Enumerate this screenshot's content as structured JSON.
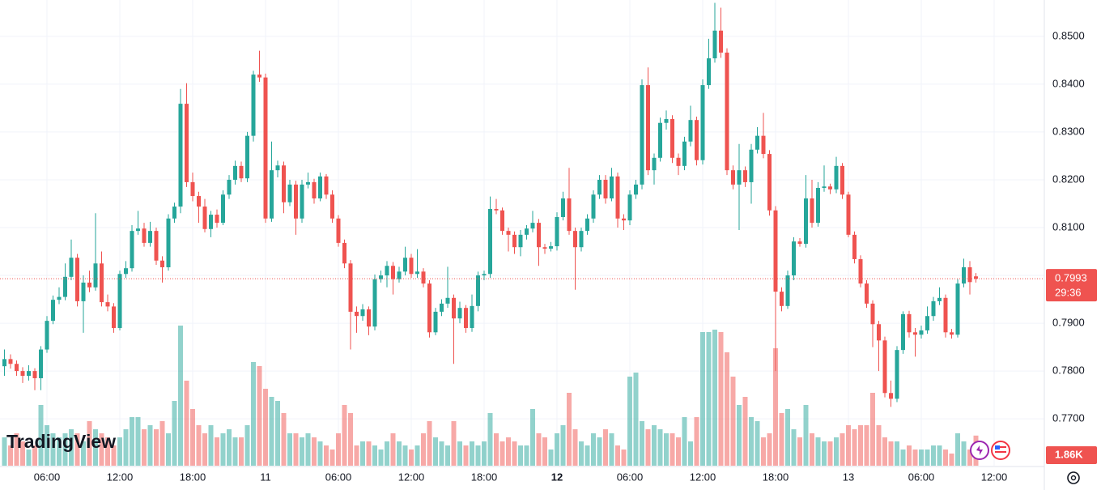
{
  "chart_data": {
    "type": "candlestick",
    "ylim": [
      0.7602,
      0.8576
    ],
    "yticks": [
      {
        "value": 0.77,
        "label": "0.7700"
      },
      {
        "value": 0.78,
        "label": "0.7800"
      },
      {
        "value": 0.79,
        "label": "0.7900"
      },
      {
        "value": 0.8,
        "label": "0.8000"
      },
      {
        "value": 0.81,
        "label": "0.8100"
      },
      {
        "value": 0.82,
        "label": "0.8200"
      },
      {
        "value": 0.83,
        "label": "0.8300"
      },
      {
        "value": 0.84,
        "label": "0.8400"
      },
      {
        "value": 0.85,
        "label": "0.8500"
      }
    ],
    "up_color": "#26a69a",
    "down_color": "#ef5350",
    "grid": true,
    "categories": [
      null,
      null,
      null,
      null,
      null,
      null,
      null,
      "06:00",
      null,
      null,
      null,
      null,
      null,
      null,
      null,
      null,
      null,
      null,
      null,
      "12:00",
      null,
      null,
      null,
      null,
      null,
      null,
      null,
      null,
      null,
      null,
      null,
      "18:00",
      null,
      null,
      null,
      null,
      null,
      null,
      null,
      null,
      null,
      null,
      null,
      "11",
      null,
      null,
      null,
      null,
      null,
      null,
      null,
      null,
      null,
      null,
      null,
      "06:00",
      null,
      null,
      null,
      null,
      null,
      null,
      null,
      null,
      null,
      null,
      null,
      "12:00",
      null,
      null,
      null,
      null,
      null,
      null,
      null,
      null,
      null,
      null,
      null,
      "18:00",
      null,
      null,
      null,
      null,
      null,
      null,
      null,
      null,
      null,
      null,
      null,
      "12",
      null,
      null,
      null,
      null,
      null,
      null,
      null,
      null,
      null,
      null,
      null,
      "06:00",
      null,
      null,
      null,
      null,
      null,
      null,
      null,
      null,
      null,
      null,
      null,
      "12:00",
      null,
      null,
      null,
      null,
      null,
      null,
      null,
      null,
      null,
      null,
      null,
      "18:00",
      null,
      null,
      null,
      null,
      null,
      null,
      null,
      null,
      null,
      null,
      null,
      "13",
      null,
      null,
      null,
      null,
      null,
      null,
      null,
      null,
      null,
      null,
      null,
      "06:00",
      null,
      null,
      null,
      null,
      null,
      null,
      null,
      null,
      null,
      null,
      null,
      "12:00"
    ],
    "ohlc": [
      [
        0.781,
        0.7845,
        0.779,
        0.7825
      ],
      [
        0.7825,
        0.7835,
        0.7805,
        0.7815
      ],
      [
        0.7815,
        0.7822,
        0.779,
        0.78
      ],
      [
        0.78,
        0.7808,
        0.7775,
        0.779
      ],
      [
        0.779,
        0.7812,
        0.778,
        0.78
      ],
      [
        0.78,
        0.7806,
        0.776,
        0.7785
      ],
      [
        0.7785,
        0.7852,
        0.776,
        0.7845
      ],
      [
        0.7845,
        0.7915,
        0.7838,
        0.7905
      ],
      [
        0.7905,
        0.7958,
        0.7898,
        0.7949
      ],
      [
        0.7949,
        0.7975,
        0.794,
        0.7955
      ],
      [
        0.7955,
        0.8025,
        0.7948,
        0.7997
      ],
      [
        0.7997,
        0.8075,
        0.799,
        0.8037
      ],
      [
        0.8037,
        0.8045,
        0.7935,
        0.7946
      ],
      [
        0.7946,
        0.8,
        0.788,
        0.7985
      ],
      [
        0.7985,
        0.801,
        0.7965,
        0.7975
      ],
      [
        0.7975,
        0.813,
        0.7968,
        0.8025
      ],
      [
        0.8025,
        0.805,
        0.7935,
        0.7944
      ],
      [
        0.7944,
        0.796,
        0.7925,
        0.7935
      ],
      [
        0.7935,
        0.7942,
        0.788,
        0.789
      ],
      [
        0.789,
        0.801,
        0.7885,
        0.8003
      ],
      [
        0.8003,
        0.803,
        0.7995,
        0.8015
      ],
      [
        0.8015,
        0.8105,
        0.8008,
        0.8093
      ],
      [
        0.8093,
        0.8135,
        0.8085,
        0.8098
      ],
      [
        0.8098,
        0.811,
        0.806,
        0.8068
      ],
      [
        0.8068,
        0.8112,
        0.806,
        0.8093
      ],
      [
        0.8093,
        0.81,
        0.8022,
        0.8031
      ],
      [
        0.8031,
        0.804,
        0.7985,
        0.8017
      ],
      [
        0.8017,
        0.8128,
        0.801,
        0.8119
      ],
      [
        0.8119,
        0.8152,
        0.811,
        0.8144
      ],
      [
        0.8144,
        0.839,
        0.813,
        0.8359
      ],
      [
        0.8359,
        0.8402,
        0.8185,
        0.8195
      ],
      [
        0.8195,
        0.8215,
        0.8155,
        0.8166
      ],
      [
        0.8166,
        0.8175,
        0.811,
        0.8144
      ],
      [
        0.8144,
        0.816,
        0.809,
        0.8097
      ],
      [
        0.8097,
        0.8135,
        0.808,
        0.8127
      ],
      [
        0.8127,
        0.8138,
        0.81,
        0.811
      ],
      [
        0.811,
        0.8178,
        0.8105,
        0.8169
      ],
      [
        0.8169,
        0.821,
        0.816,
        0.82
      ],
      [
        0.82,
        0.824,
        0.819,
        0.8229
      ],
      [
        0.8229,
        0.8238,
        0.8195,
        0.8203
      ],
      [
        0.8203,
        0.83,
        0.8195,
        0.8292
      ],
      [
        0.8292,
        0.8428,
        0.828,
        0.842
      ],
      [
        0.842,
        0.847,
        0.8405,
        0.8414
      ],
      [
        0.8414,
        0.8422,
        0.811,
        0.8119
      ],
      [
        0.8119,
        0.828,
        0.8112,
        0.822
      ],
      [
        0.822,
        0.824,
        0.8205,
        0.823
      ],
      [
        0.823,
        0.8238,
        0.813,
        0.8153
      ],
      [
        0.8153,
        0.82,
        0.8145,
        0.819
      ],
      [
        0.819,
        0.8198,
        0.8085,
        0.8119
      ],
      [
        0.8119,
        0.82,
        0.811,
        0.819
      ],
      [
        0.819,
        0.8215,
        0.8182,
        0.8195
      ],
      [
        0.8195,
        0.8202,
        0.815,
        0.8161
      ],
      [
        0.8161,
        0.8215,
        0.8155,
        0.8207
      ],
      [
        0.8207,
        0.8212,
        0.816,
        0.8169
      ],
      [
        0.8169,
        0.8178,
        0.811,
        0.8119
      ],
      [
        0.8119,
        0.8126,
        0.806,
        0.8068
      ],
      [
        0.8068,
        0.8075,
        0.8015,
        0.8025
      ],
      [
        0.8025,
        0.8032,
        0.7845,
        0.7924
      ],
      [
        0.7924,
        0.7935,
        0.788,
        0.7915
      ],
      [
        0.7915,
        0.794,
        0.7905,
        0.7929
      ],
      [
        0.7929,
        0.7935,
        0.7875,
        0.7893
      ],
      [
        0.7893,
        0.8002,
        0.7885,
        0.7992
      ],
      [
        0.7992,
        0.801,
        0.7985,
        0.8
      ],
      [
        0.8,
        0.803,
        0.7975,
        0.802
      ],
      [
        0.802,
        0.8028,
        0.796,
        0.7992
      ],
      [
        0.7992,
        0.8018,
        0.7985,
        0.8008
      ],
      [
        0.8008,
        0.806,
        0.8,
        0.8037
      ],
      [
        0.8037,
        0.8045,
        0.7995,
        0.8003
      ],
      [
        0.8003,
        0.8055,
        0.7995,
        0.8008
      ],
      [
        0.8008,
        0.8015,
        0.7975,
        0.7983
      ],
      [
        0.7983,
        0.799,
        0.787,
        0.7881
      ],
      [
        0.7881,
        0.7932,
        0.7875,
        0.7924
      ],
      [
        0.7924,
        0.795,
        0.7915,
        0.7941
      ],
      [
        0.7941,
        0.8018,
        0.7932,
        0.7953
      ],
      [
        0.7953,
        0.796,
        0.7815,
        0.791
      ],
      [
        0.791,
        0.7945,
        0.79,
        0.7932
      ],
      [
        0.7932,
        0.7938,
        0.788,
        0.789
      ],
      [
        0.789,
        0.796,
        0.7882,
        0.7936
      ],
      [
        0.7936,
        0.8008,
        0.7925,
        0.8
      ],
      [
        0.8,
        0.801,
        0.799,
        0.8003
      ],
      [
        0.8003,
        0.8165,
        0.7995,
        0.8139
      ],
      [
        0.8139,
        0.816,
        0.8128,
        0.8136
      ],
      [
        0.8136,
        0.8142,
        0.8085,
        0.8093
      ],
      [
        0.8093,
        0.81,
        0.805,
        0.8085
      ],
      [
        0.8085,
        0.8092,
        0.8045,
        0.8059
      ],
      [
        0.8059,
        0.8095,
        0.804,
        0.8085
      ],
      [
        0.8085,
        0.8105,
        0.8075,
        0.8098
      ],
      [
        0.8098,
        0.8135,
        0.809,
        0.811
      ],
      [
        0.811,
        0.8118,
        0.802,
        0.8059
      ],
      [
        0.8059,
        0.8066,
        0.8045,
        0.8056
      ],
      [
        0.8056,
        0.807,
        0.805,
        0.8061
      ],
      [
        0.8061,
        0.8132,
        0.8052,
        0.8122
      ],
      [
        0.8122,
        0.8175,
        0.8115,
        0.8161
      ],
      [
        0.8161,
        0.8225,
        0.8085,
        0.8093
      ],
      [
        0.8093,
        0.81,
        0.797,
        0.8059
      ],
      [
        0.8059,
        0.81,
        0.805,
        0.8093
      ],
      [
        0.8093,
        0.8128,
        0.8085,
        0.8119
      ],
      [
        0.8119,
        0.8178,
        0.811,
        0.8169
      ],
      [
        0.8169,
        0.821,
        0.816,
        0.82
      ],
      [
        0.82,
        0.821,
        0.815,
        0.8161
      ],
      [
        0.8161,
        0.8225,
        0.8155,
        0.8207
      ],
      [
        0.8207,
        0.8215,
        0.81,
        0.8119
      ],
      [
        0.8119,
        0.8128,
        0.8095,
        0.8115
      ],
      [
        0.8115,
        0.8178,
        0.8105,
        0.8169
      ],
      [
        0.8169,
        0.82,
        0.816,
        0.819
      ],
      [
        0.819,
        0.841,
        0.818,
        0.8398
      ],
      [
        0.8398,
        0.8435,
        0.821,
        0.822
      ],
      [
        0.822,
        0.8255,
        0.819,
        0.8246
      ],
      [
        0.8246,
        0.833,
        0.8238,
        0.8319
      ],
      [
        0.8319,
        0.8345,
        0.8305,
        0.8327
      ],
      [
        0.8327,
        0.8335,
        0.8235,
        0.8246
      ],
      [
        0.8246,
        0.8255,
        0.821,
        0.8229
      ],
      [
        0.8229,
        0.829,
        0.822,
        0.828
      ],
      [
        0.828,
        0.8355,
        0.827,
        0.8325
      ],
      [
        0.8325,
        0.8332,
        0.823,
        0.8241
      ],
      [
        0.8241,
        0.841,
        0.8232,
        0.8398
      ],
      [
        0.8398,
        0.8495,
        0.839,
        0.8454
      ],
      [
        0.8454,
        0.857,
        0.8445,
        0.8512
      ],
      [
        0.8512,
        0.856,
        0.8455,
        0.8466
      ],
      [
        0.8466,
        0.8475,
        0.821,
        0.822
      ],
      [
        0.822,
        0.823,
        0.818,
        0.819
      ],
      [
        0.819,
        0.8275,
        0.8095,
        0.822
      ],
      [
        0.822,
        0.8228,
        0.8185,
        0.8195
      ],
      [
        0.8195,
        0.8275,
        0.815,
        0.8263
      ],
      [
        0.8263,
        0.831,
        0.8255,
        0.8292
      ],
      [
        0.8292,
        0.834,
        0.8245,
        0.8254
      ],
      [
        0.8254,
        0.8262,
        0.8125,
        0.8136
      ],
      [
        0.8136,
        0.8145,
        0.78,
        0.7966
      ],
      [
        0.7966,
        0.7975,
        0.7925,
        0.7936
      ],
      [
        0.7936,
        0.801,
        0.793,
        0.8
      ],
      [
        0.8,
        0.808,
        0.799,
        0.8071
      ],
      [
        0.8071,
        0.8078,
        0.806,
        0.8066
      ],
      [
        0.8066,
        0.821,
        0.8058,
        0.8161
      ],
      [
        0.8161,
        0.82,
        0.81,
        0.811
      ],
      [
        0.811,
        0.8195,
        0.8102,
        0.8183
      ],
      [
        0.8183,
        0.823,
        0.8175,
        0.8186
      ],
      [
        0.8186,
        0.8192,
        0.817,
        0.818
      ],
      [
        0.818,
        0.8248,
        0.8172,
        0.8229
      ],
      [
        0.8229,
        0.8235,
        0.816,
        0.8169
      ],
      [
        0.8169,
        0.8175,
        0.808,
        0.8085
      ],
      [
        0.8085,
        0.8092,
        0.8025,
        0.8034
      ],
      [
        0.8034,
        0.8042,
        0.7975,
        0.7983
      ],
      [
        0.7983,
        0.799,
        0.7932,
        0.7941
      ],
      [
        0.7941,
        0.7948,
        0.785,
        0.7898
      ],
      [
        0.7898,
        0.7905,
        0.78,
        0.7864
      ],
      [
        0.7864,
        0.7872,
        0.7745,
        0.7754
      ],
      [
        0.7754,
        0.778,
        0.7725,
        0.7742
      ],
      [
        0.7742,
        0.7852,
        0.7735,
        0.7844
      ],
      [
        0.7844,
        0.7925,
        0.7836,
        0.7919
      ],
      [
        0.7919,
        0.7926,
        0.787,
        0.7881
      ],
      [
        0.7881,
        0.789,
        0.783,
        0.7876
      ],
      [
        0.7876,
        0.7895,
        0.7868,
        0.7885
      ],
      [
        0.7885,
        0.7935,
        0.7878,
        0.7915
      ],
      [
        0.7915,
        0.7955,
        0.7905,
        0.7946
      ],
      [
        0.7946,
        0.7975,
        0.7938,
        0.7953
      ],
      [
        0.7953,
        0.796,
        0.787,
        0.7881
      ],
      [
        0.7881,
        0.7888,
        0.7868,
        0.7876
      ],
      [
        0.7876,
        0.7992,
        0.787,
        0.7983
      ],
      [
        0.7983,
        0.8035,
        0.7975,
        0.8017
      ],
      [
        0.8017,
        0.803,
        0.796,
        0.7986
      ],
      [
        0.7998,
        0.8005,
        0.7985,
        0.7993
      ],
      null,
      null,
      null
    ],
    "volume": [
      1750,
      1250,
      2000,
      1500,
      1000,
      1250,
      3750,
      2500,
      2000,
      1750,
      2000,
      2250,
      2000,
      1500,
      2750,
      2250,
      2000,
      1750,
      1250,
      1750,
      2250,
      3000,
      3000,
      2250,
      2500,
      2250,
      2750,
      2000,
      4000,
      8650,
      5250,
      3500,
      2500,
      2000,
      2500,
      1750,
      2000,
      2250,
      1750,
      1750,
      2500,
      6400,
      6150,
      4750,
      4250,
      4000,
      3250,
      2000,
      2000,
      1750,
      2000,
      1750,
      1500,
      1250,
      1000,
      2000,
      3750,
      3250,
      1250,
      1500,
      1500,
      1250,
      1000,
      1500,
      2000,
      1500,
      1250,
      1000,
      1250,
      2000,
      2750,
      1750,
      1500,
      1250,
      2750,
      1500,
      1250,
      1500,
      1250,
      1500,
      3250,
      2000,
      1500,
      1750,
      1500,
      1250,
      1250,
      3500,
      2000,
      1750,
      1000,
      2000,
      2500,
      4500,
      2250,
      1500,
      1250,
      2000,
      1750,
      2250,
      2000,
      1250,
      1000,
      5500,
      5750,
      2750,
      2250,
      2500,
      2250,
      2000,
      2000,
      1750,
      3000,
      1500,
      3000,
      8250,
      8250,
      8400,
      8250,
      7000,
      5500,
      3750,
      4250,
      3000,
      2750,
      1750,
      2000,
      7250,
      3250,
      3500,
      2250,
      1750,
      3750,
      2000,
      1750,
      1500,
      1500,
      1750,
      2000,
      2500,
      2250,
      2500,
      2500,
      4500,
      2500,
      1750,
      1500,
      1500,
      1000,
      1250,
      1000,
      1000,
      1000,
      1250,
      1250,
      1000,
      750,
      2000,
      1500,
      1000,
      1860,
      null,
      null,
      null
    ],
    "volume_lim": [
      0,
      28750
    ],
    "volume_label": "1.86K",
    "countdown": "29:36",
    "logo": "TradingView"
  }
}
